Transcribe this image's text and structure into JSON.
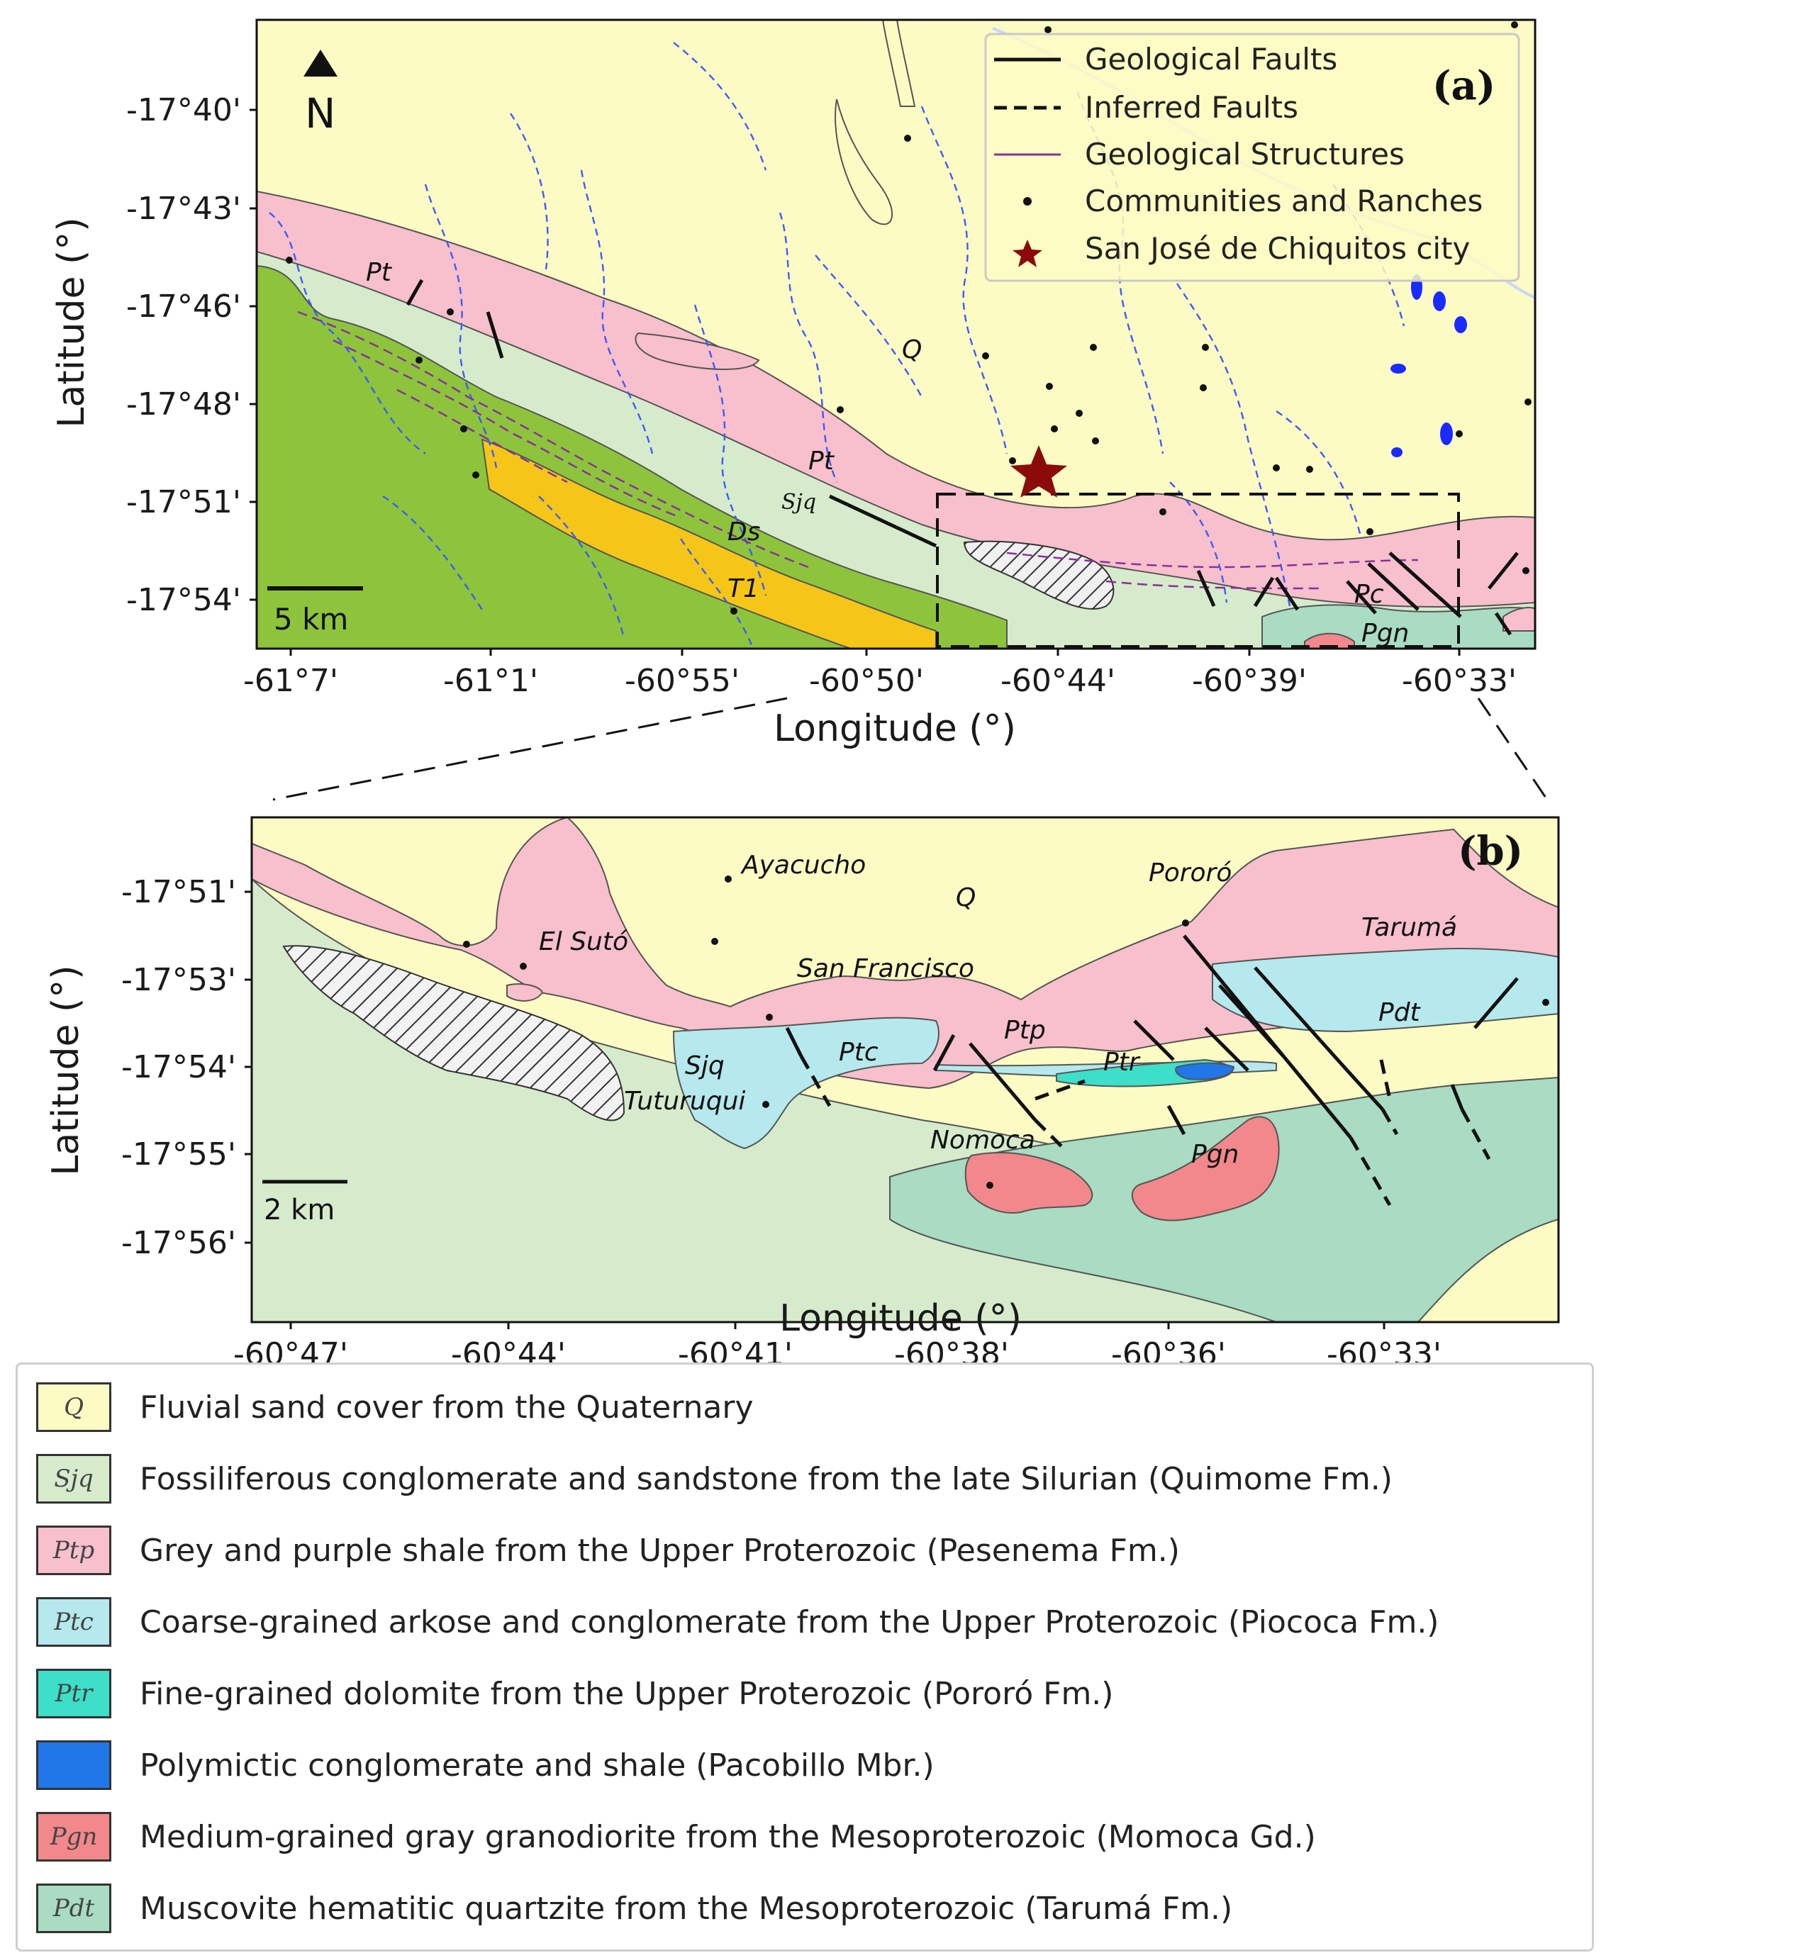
{
  "panel_a": {
    "tag": "(a)",
    "north": "N",
    "scalebar": "5 km",
    "xlabel": "Longitude (°)",
    "ylabel": "Latitude (°)",
    "xticks": [
      "-61°7'",
      "-61°1'",
      "-60°55'",
      "-60°50'",
      "-60°44'",
      "-60°39'",
      "-60°33'"
    ],
    "yticks": [
      "-17°40'",
      "-17°43'",
      "-17°46'",
      "-17°48'",
      "-17°51'",
      "-17°54'"
    ],
    "labels": {
      "q": "Q",
      "pt1": "Pt",
      "pt2": "Pt",
      "sjq": "Sjq",
      "ds": "Ds",
      "t1": "T1",
      "pc": "Pc",
      "pgn": "Pgn"
    },
    "legend": [
      {
        "symbol": "solid-line",
        "label": "Geological Faults"
      },
      {
        "symbol": "dashed-line",
        "label": "Inferred Faults"
      },
      {
        "symbol": "purple-line",
        "label": "Geological Structures"
      },
      {
        "symbol": "dot",
        "label": "Communities and Ranches"
      },
      {
        "symbol": "star",
        "label": "San José de Chiquitos city"
      }
    ]
  },
  "panel_b": {
    "tag": "(b)",
    "scalebar": "2 km",
    "xlabel": "Longitude (°)",
    "ylabel": "Latitude (°)",
    "xticks": [
      "-60°47'",
      "-60°44'",
      "-60°41'",
      "-60°38'",
      "-60°36'",
      "-60°33'"
    ],
    "yticks": [
      "-17°51'",
      "-17°53'",
      "-17°54'",
      "-17°55'",
      "-17°56'"
    ],
    "places": {
      "ayacucho": "Ayacucho",
      "el_suto": "El Sutó",
      "san_francisco": "San Francisco",
      "tuturuqui": "Tuturuqui",
      "nomoca": "Nomoca",
      "pororo": "Pororó",
      "taruma": "Tarumá"
    },
    "units": {
      "q": "Q",
      "sjq": "Sjq",
      "ptc": "Ptc",
      "ptp": "Ptp",
      "ptr": "Ptr",
      "pdt": "Pdt",
      "pgn": "Pgn"
    }
  },
  "legend_units": [
    {
      "code": "Q",
      "color": "#fdfbc4",
      "label": "Fluvial sand cover from the Quaternary"
    },
    {
      "code": "Sjq",
      "color": "#d6ebcc",
      "label": "Fossiliferous conglomerate and sandstone from the late Silurian (Quimome Fm.)"
    },
    {
      "code": "Ptp",
      "color": "#f8bfcc",
      "label": "Grey and purple shale from the Upper Proterozoic (Pesenema Fm.)"
    },
    {
      "code": "Ptc",
      "color": "#b5e9ee",
      "label": "Coarse-grained arkose and conglomerate from the Upper Proterozoic (Piococa Fm.)"
    },
    {
      "code": "Ptr",
      "color": "#3ddfc9",
      "label": "Fine-grained dolomite from the Upper Proterozoic (Pororó Fm.)"
    },
    {
      "code": "",
      "color": "#2176e8",
      "label": "Polymictic conglomerate and shale (Pacobillo Mbr.)"
    },
    {
      "code": "Pgn",
      "color": "#f2888b",
      "label": "Medium-grained gray granodiorite from the Mesoproterozoic (Momoca Gd.)"
    },
    {
      "code": "Pdt",
      "color": "#a9dcc2",
      "label": "Muscovite hematitic quartzite from the Mesoproterozoic (Tarumá Fm.)"
    }
  ]
}
